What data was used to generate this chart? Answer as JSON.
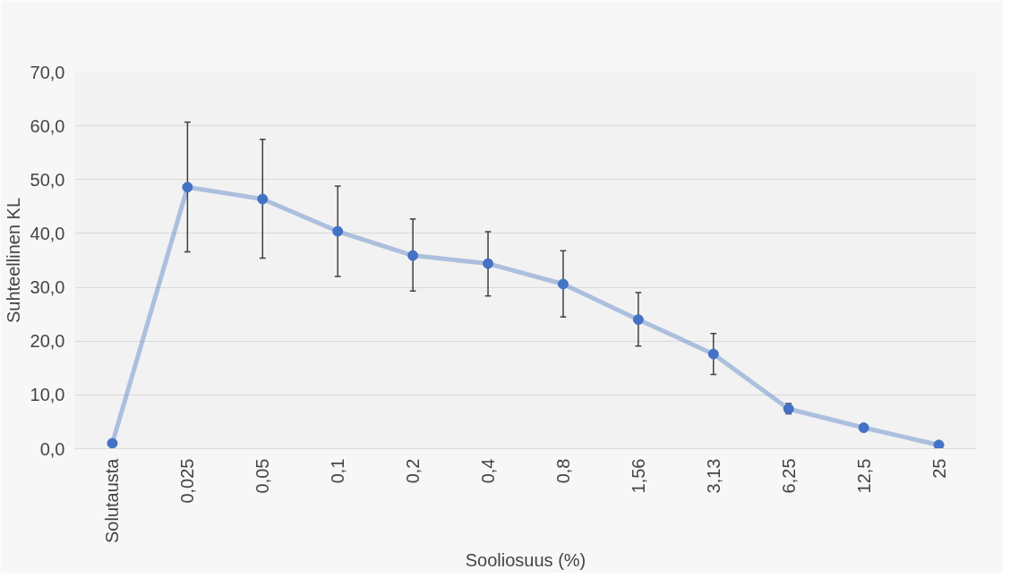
{
  "chart_data": {
    "type": "line",
    "xlabel": "Sooliosuus (%)",
    "ylabel": "Suhteellinen KL",
    "categories": [
      "Solutausta",
      "0,025",
      "0,05",
      "0,1",
      "0,2",
      "0,4",
      "0,8",
      "1,56",
      "3,13",
      "6,25",
      "12,5",
      "25"
    ],
    "series": [
      {
        "color": "#4472c4",
        "values": [
          1.0,
          48.6,
          46.4,
          40.4,
          35.9,
          34.4,
          30.6,
          24.0,
          17.6,
          7.4,
          3.9,
          0.7
        ],
        "errors": [
          null,
          [
            36.6,
            60.7
          ],
          [
            35.4,
            57.5
          ],
          [
            32.0,
            48.8
          ],
          [
            29.3,
            42.7
          ],
          [
            28.4,
            40.3
          ],
          [
            24.5,
            36.8
          ],
          [
            19.1,
            29.0
          ],
          [
            13.8,
            21.4
          ],
          [
            6.5,
            8.4
          ],
          null,
          null
        ]
      }
    ],
    "ylim": [
      0,
      70
    ],
    "yticks": [
      {
        "value": 0,
        "label": "0,0"
      },
      {
        "value": 10,
        "label": "10,0"
      },
      {
        "value": 20,
        "label": "20,0"
      },
      {
        "value": 30,
        "label": "30,0"
      },
      {
        "value": 40,
        "label": "40,0"
      },
      {
        "value": 50,
        "label": "50,0"
      },
      {
        "value": 60,
        "label": "60,0"
      },
      {
        "value": 70,
        "label": "70,0"
      }
    ],
    "grid": "y",
    "marker": "circle",
    "line_style": "solid"
  }
}
